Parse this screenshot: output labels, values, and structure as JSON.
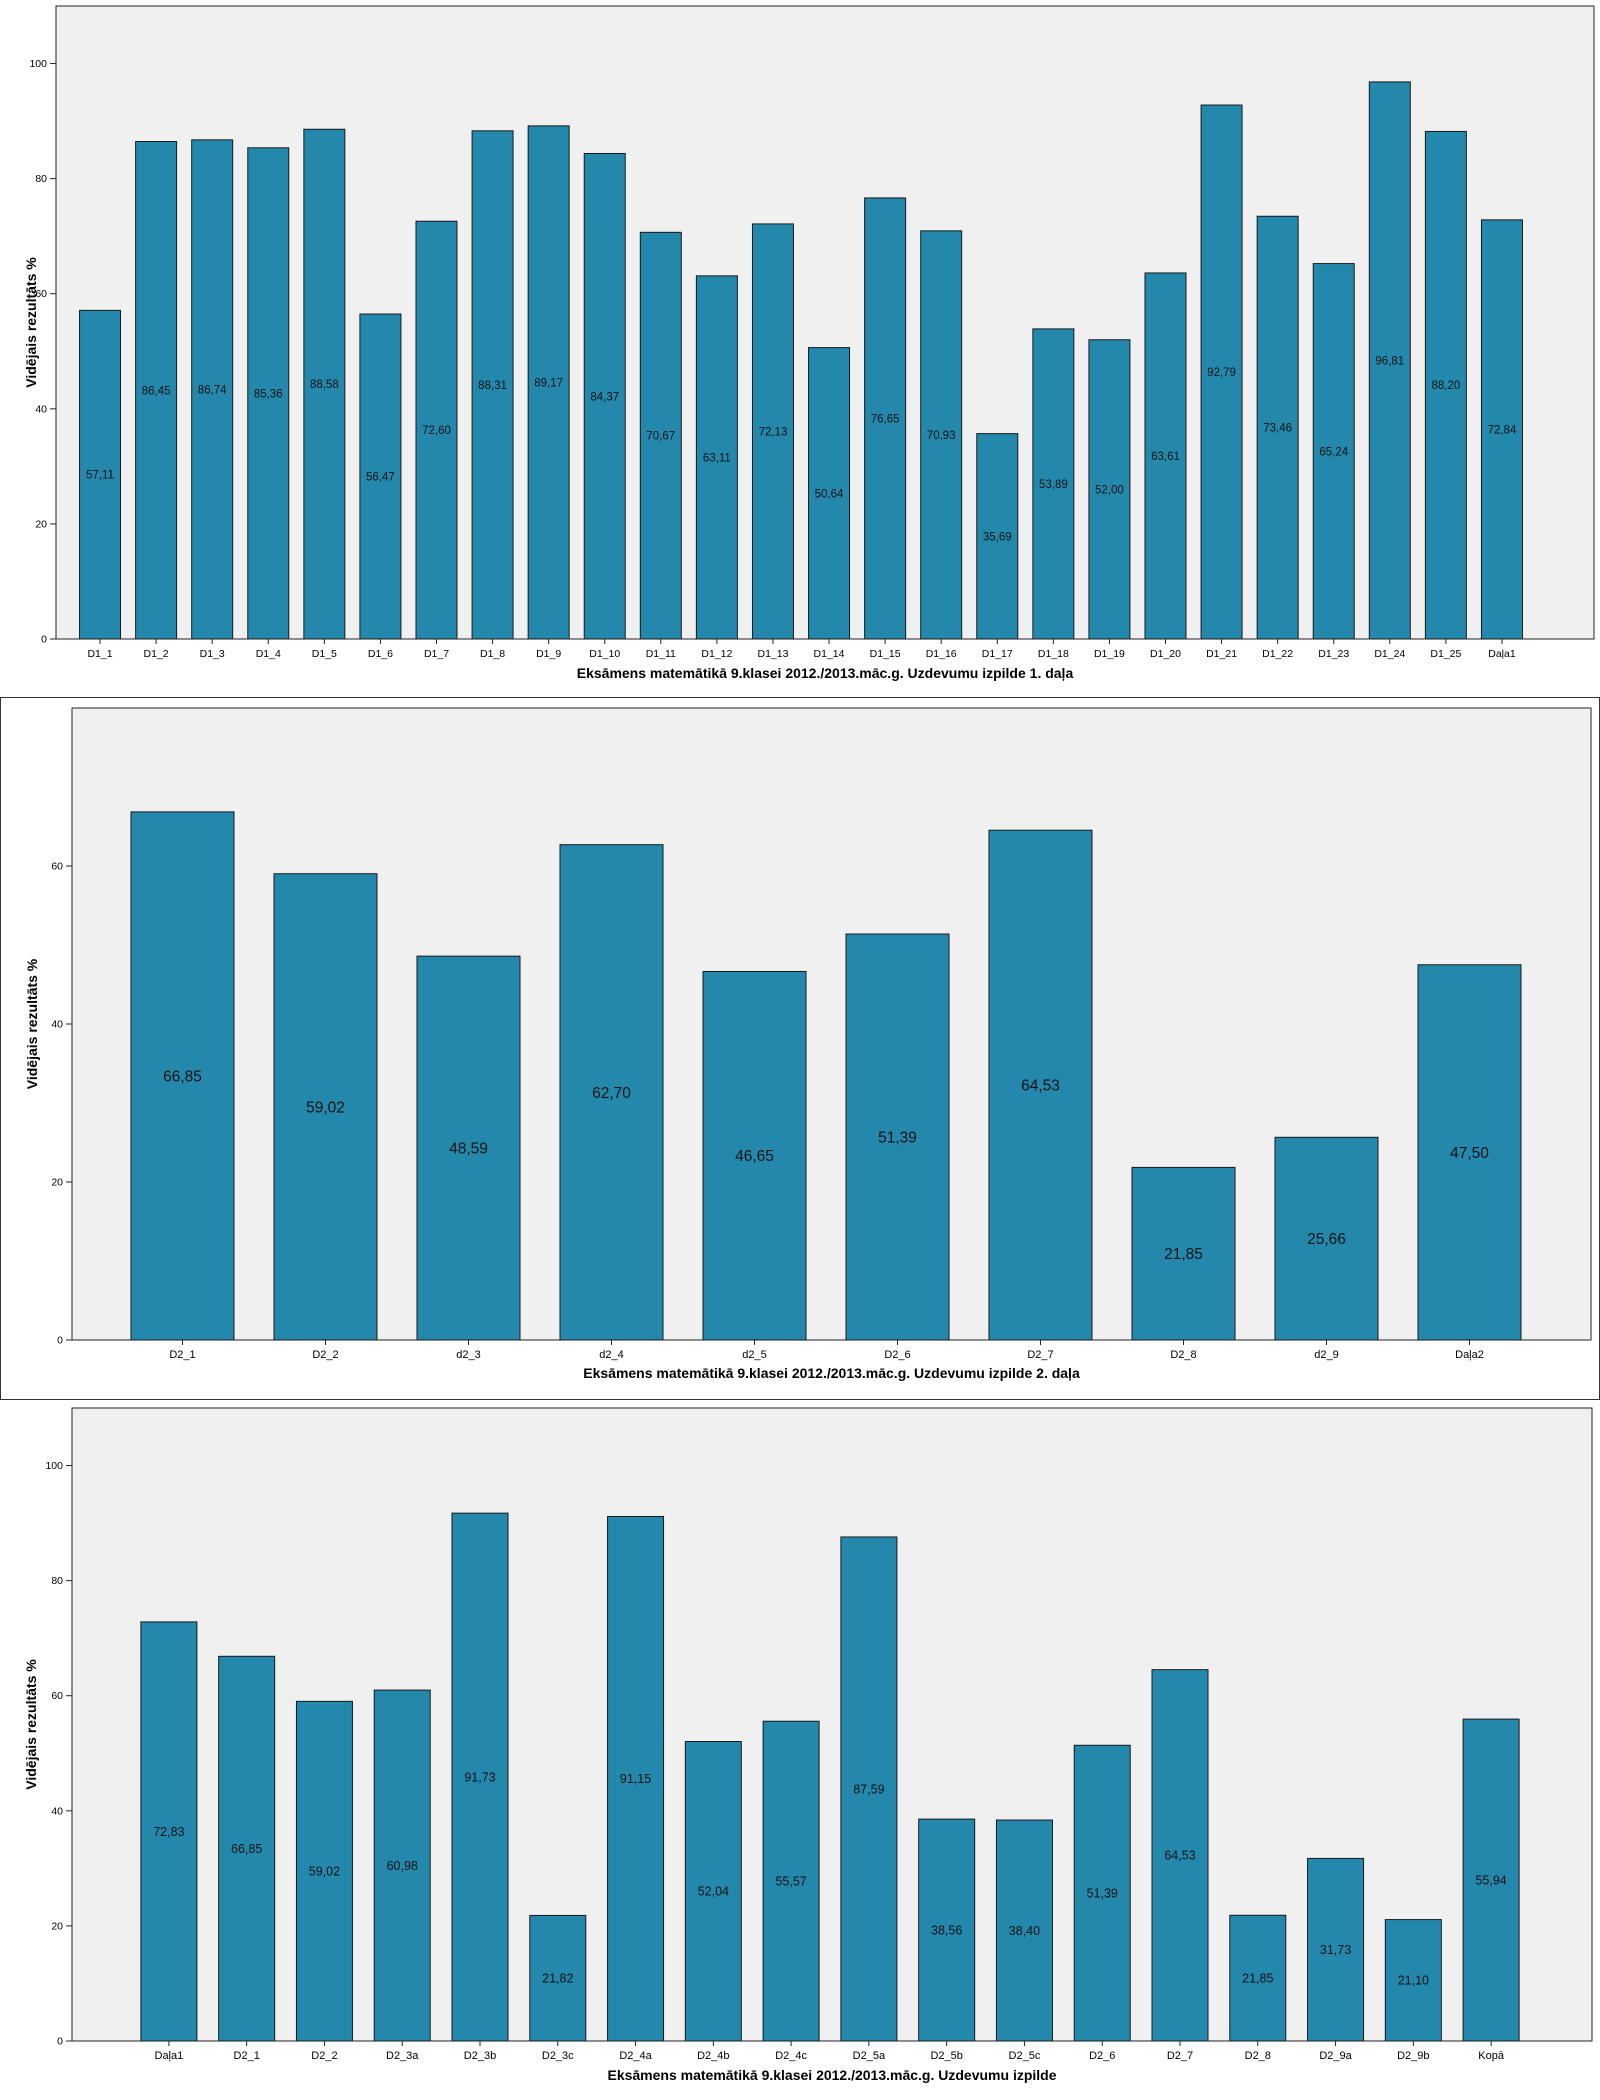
{
  "charts": [
    {
      "type": "bar",
      "title": "",
      "xlabel": "Eksāmens matemātikā 9.klasei 2012./2013.māc.g. Uzdevumu izpilde 1. daļa",
      "ylabel": "Vidējais rezultāts %",
      "ylim": [
        0,
        110
      ],
      "yticks": [
        0,
        20,
        40,
        60,
        80,
        100
      ],
      "grid": false,
      "legend": "none",
      "bar_color": "#2488AC",
      "plot_bg": "#F0F0F0",
      "categories": [
        "D1_1",
        "D1_2",
        "D1_3",
        "D1_4",
        "D1_5",
        "D1_6",
        "D1_7",
        "D1_8",
        "D1_9",
        "D1_10",
        "D1_11",
        "D1_12",
        "D1_13",
        "D1_14",
        "D1_15",
        "D1_16",
        "D1_17",
        "D1_18",
        "D1_19",
        "D1_20",
        "D1_21",
        "D1_22",
        "D1_23",
        "D1_24",
        "D1_25",
        "Daļa1"
      ],
      "values": [
        57.11,
        86.45,
        86.74,
        85.36,
        88.58,
        56.47,
        72.6,
        88.31,
        89.17,
        84.37,
        70.67,
        63.11,
        72.13,
        50.64,
        76.65,
        70.93,
        35.69,
        53.89,
        52.0,
        63.61,
        92.79,
        73.46,
        65.24,
        96.81,
        88.2,
        72.84
      ],
      "value_labels": [
        "57,11",
        "86,45",
        "86,74",
        "85,36",
        "88,58",
        "56,47",
        "72,60",
        "88,31",
        "89,17",
        "84,37",
        "70,67",
        "63,11",
        "72,13",
        "50,64",
        "76,65",
        "70,93",
        "35,69",
        "53,89",
        "52,00",
        "63,61",
        "92,79",
        "73,46",
        "65,24",
        "96,81",
        "88,20",
        "72,84"
      ]
    },
    {
      "type": "bar",
      "title": "",
      "xlabel": "Eksāmens matemātikā 9.klasei 2012./2013.māc.g. Uzdevumu izpilde 2. daļa",
      "ylabel": "Vidējais rezultāts %",
      "ylim": [
        0,
        80
      ],
      "yticks": [
        0,
        20,
        40,
        60
      ],
      "grid": false,
      "legend": "none",
      "bar_color": "#2488AC",
      "plot_bg": "#F0F0F0",
      "categories": [
        "D2_1",
        "D2_2",
        "d2_3",
        "d2_4",
        "d2_5",
        "D2_6",
        "D2_7",
        "D2_8",
        "d2_9",
        "Daļa2"
      ],
      "values": [
        66.85,
        59.02,
        48.59,
        62.7,
        46.65,
        51.39,
        64.53,
        21.85,
        25.66,
        47.5
      ],
      "value_labels": [
        "66,85",
        "59,02",
        "48,59",
        "62,70",
        "46,65",
        "51,39",
        "64,53",
        "21,85",
        "25,66",
        "47,50"
      ]
    },
    {
      "type": "bar",
      "title": "",
      "xlabel": "Eksāmens matemātikā 9.klasei 2012./2013.māc.g. Uzdevumu izpilde",
      "ylabel": "Vidējais rezultāts %",
      "ylim": [
        0,
        110
      ],
      "yticks": [
        0,
        20,
        40,
        60,
        80,
        100
      ],
      "grid": false,
      "legend": "none",
      "bar_color": "#2488AC",
      "plot_bg": "#F0F0F0",
      "categories": [
        "Daļa1",
        "D2_1",
        "D2_2",
        "D2_3a",
        "D2_3b",
        "D2_3c",
        "D2_4a",
        "D2_4b",
        "D2_4c",
        "D2_5a",
        "D2_5b",
        "D2_5c",
        "D2_6",
        "D2_7",
        "D2_8",
        "D2_9a",
        "D2_9b",
        "Kopā"
      ],
      "values": [
        72.83,
        66.85,
        59.02,
        60.98,
        91.73,
        21.82,
        91.15,
        52.04,
        55.57,
        87.59,
        38.56,
        38.4,
        51.39,
        64.53,
        21.85,
        31.73,
        21.1,
        55.94
      ],
      "value_labels": [
        "72,83",
        "66,85",
        "59,02",
        "60,98",
        "91,73",
        "21,82",
        "91,15",
        "52,04",
        "55,57",
        "87,59",
        "38,56",
        "38,40",
        "51,39",
        "64,53",
        "21,85",
        "31,73",
        "21,10",
        "55,94"
      ]
    }
  ]
}
